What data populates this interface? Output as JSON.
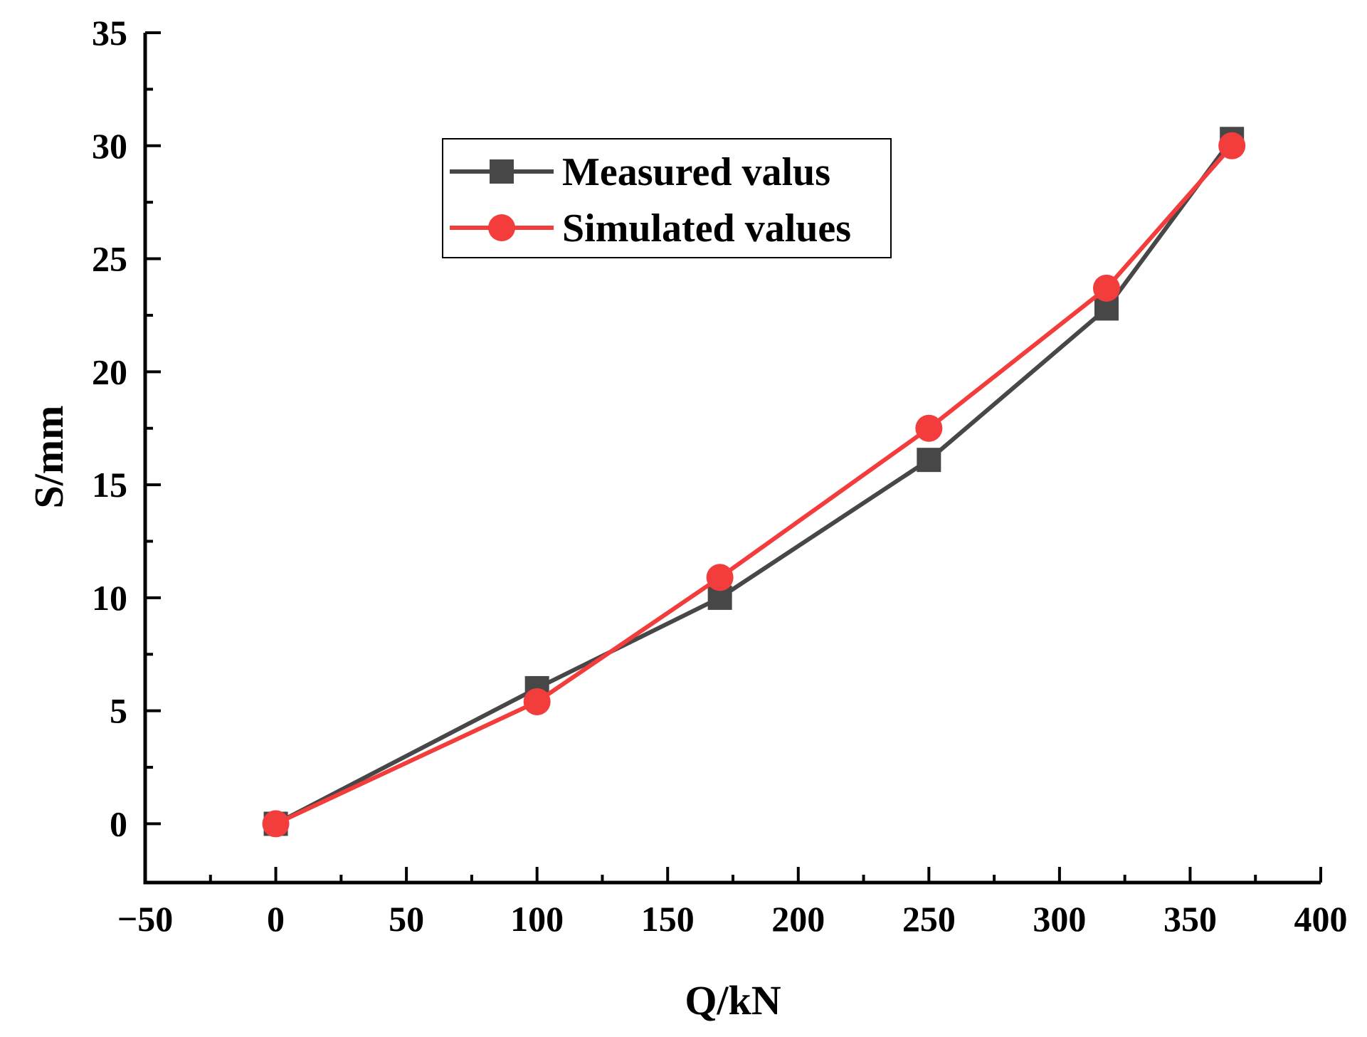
{
  "chart_data": {
    "type": "line",
    "title": "",
    "xlabel": "Q/kN",
    "ylabel": "S/mm",
    "xlim": [
      -50,
      400
    ],
    "ylim": [
      -2.6,
      35
    ],
    "xticks": [
      -50,
      0,
      50,
      100,
      150,
      200,
      250,
      300,
      350,
      400
    ],
    "xtick_labels": [
      "−50",
      "0",
      "50",
      "100",
      "150",
      "200",
      "250",
      "300",
      "350",
      "400"
    ],
    "yticks": [
      0,
      5,
      10,
      15,
      20,
      25,
      30,
      35
    ],
    "ytick_labels": [
      "0",
      "5",
      "10",
      "15",
      "20",
      "25",
      "30",
      "35"
    ],
    "grid": false,
    "legend_position": "top-center",
    "series": [
      {
        "name": "Measured valus",
        "marker": "square",
        "color": "#474747",
        "x": [
          0,
          100,
          170,
          250,
          318,
          366
        ],
        "y": [
          0,
          6.0,
          10.0,
          16.1,
          22.8,
          30.3
        ]
      },
      {
        "name": "Simulated values",
        "marker": "circle",
        "color": "#f33c3c",
        "x": [
          0,
          100,
          170,
          250,
          318,
          366
        ],
        "y": [
          0,
          5.4,
          10.9,
          17.5,
          23.7,
          30.0
        ]
      }
    ]
  }
}
